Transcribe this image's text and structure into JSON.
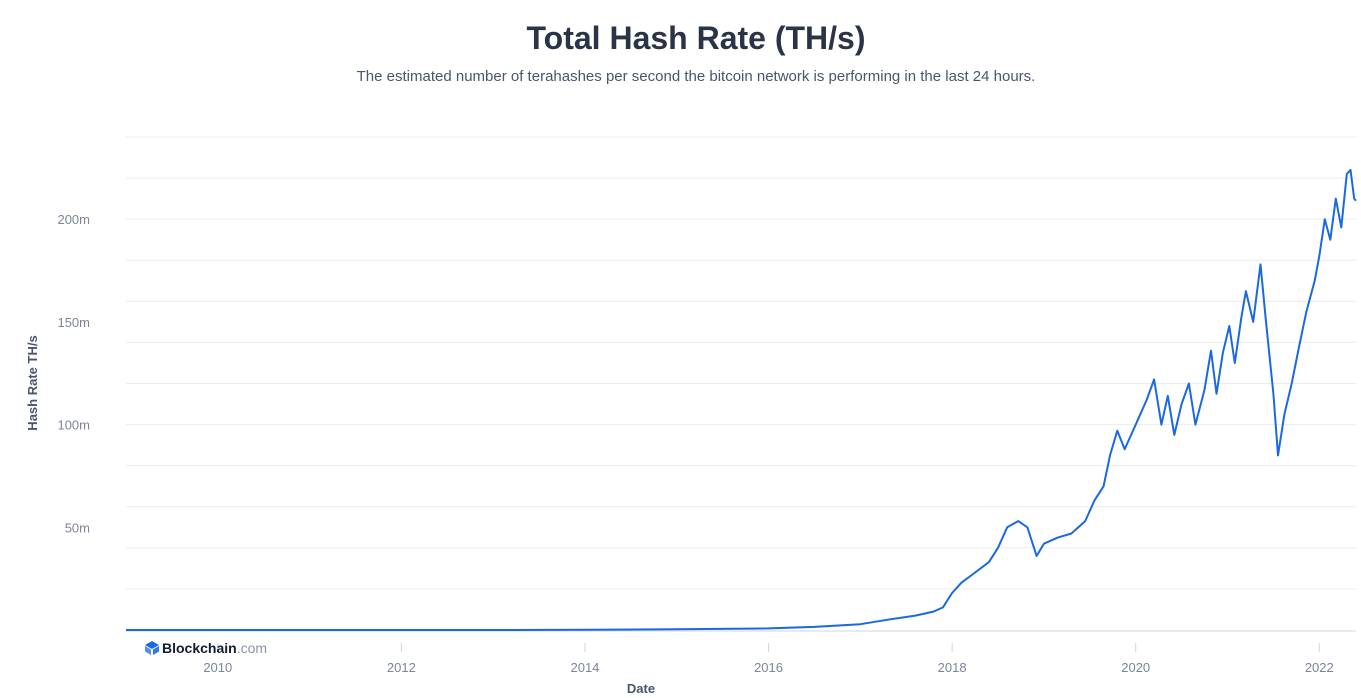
{
  "chart_data": {
    "type": "line",
    "title": "Total Hash Rate (TH/s)",
    "subtitle": "The estimated number of terahashes per second the bitcoin network is performing in the last 24 hours.",
    "xlabel": "Date",
    "ylabel": "Hash Rate TH/s",
    "y_ticks": [
      {
        "label": "50m",
        "value": 50000000
      },
      {
        "label": "100m",
        "value": 100000000
      },
      {
        "label": "150m",
        "value": 150000000
      },
      {
        "label": "200m",
        "value": 200000000
      }
    ],
    "x_ticks": [
      {
        "label": "2010",
        "value": 2010
      },
      {
        "label": "2012",
        "value": 2012
      },
      {
        "label": "2014",
        "value": 2014
      },
      {
        "label": "2016",
        "value": 2016
      },
      {
        "label": "2018",
        "value": 2018
      },
      {
        "label": "2020",
        "value": 2020
      },
      {
        "label": "2022",
        "value": 2022
      }
    ],
    "xlim": [
      2009.0,
      2022.4
    ],
    "ylim": [
      0,
      240000000
    ],
    "grid": true,
    "line_color": "#1a69e0",
    "series": [
      {
        "values": [
          [
            2009.0,
            0
          ],
          [
            2013.0,
            0
          ],
          [
            2014.0,
            150000
          ],
          [
            2015.0,
            350000
          ],
          [
            2016.0,
            800000
          ],
          [
            2016.5,
            1500000
          ],
          [
            2017.0,
            2800000
          ],
          [
            2017.3,
            5000000
          ],
          [
            2017.6,
            7000000
          ],
          [
            2017.7,
            8000000
          ],
          [
            2017.8,
            9000000
          ],
          [
            2017.9,
            11000000
          ],
          [
            2018.0,
            18000000
          ],
          [
            2018.1,
            23000000
          ],
          [
            2018.25,
            28000000
          ],
          [
            2018.4,
            33000000
          ],
          [
            2018.5,
            40000000
          ],
          [
            2018.6,
            50000000
          ],
          [
            2018.72,
            53000000
          ],
          [
            2018.82,
            50000000
          ],
          [
            2018.92,
            36000000
          ],
          [
            2019.0,
            42000000
          ],
          [
            2019.15,
            45000000
          ],
          [
            2019.3,
            47000000
          ],
          [
            2019.45,
            53000000
          ],
          [
            2019.55,
            63000000
          ],
          [
            2019.65,
            70000000
          ],
          [
            2019.72,
            85000000
          ],
          [
            2019.8,
            97000000
          ],
          [
            2019.88,
            88000000
          ],
          [
            2019.95,
            95000000
          ],
          [
            2020.05,
            105000000
          ],
          [
            2020.12,
            112000000
          ],
          [
            2020.2,
            122000000
          ],
          [
            2020.28,
            100000000
          ],
          [
            2020.35,
            114000000
          ],
          [
            2020.42,
            95000000
          ],
          [
            2020.5,
            110000000
          ],
          [
            2020.58,
            120000000
          ],
          [
            2020.65,
            100000000
          ],
          [
            2020.75,
            117000000
          ],
          [
            2020.82,
            136000000
          ],
          [
            2020.88,
            115000000
          ],
          [
            2020.95,
            135000000
          ],
          [
            2021.02,
            148000000
          ],
          [
            2021.08,
            130000000
          ],
          [
            2021.15,
            152000000
          ],
          [
            2021.2,
            165000000
          ],
          [
            2021.28,
            150000000
          ],
          [
            2021.36,
            178000000
          ],
          [
            2021.42,
            150000000
          ],
          [
            2021.5,
            115000000
          ],
          [
            2021.55,
            85000000
          ],
          [
            2021.62,
            105000000
          ],
          [
            2021.7,
            120000000
          ],
          [
            2021.78,
            138000000
          ],
          [
            2021.86,
            155000000
          ],
          [
            2021.95,
            170000000
          ],
          [
            2022.0,
            182000000
          ],
          [
            2022.06,
            200000000
          ],
          [
            2022.12,
            190000000
          ],
          [
            2022.18,
            210000000
          ],
          [
            2022.24,
            196000000
          ],
          [
            2022.3,
            222000000
          ],
          [
            2022.34,
            224000000
          ],
          [
            2022.38,
            210000000
          ],
          [
            2022.4,
            209000000
          ]
        ]
      }
    ]
  },
  "brand": {
    "name_main": "Blockchain",
    "name_suffix": ".com",
    "logo_color": "#1a69e0"
  }
}
